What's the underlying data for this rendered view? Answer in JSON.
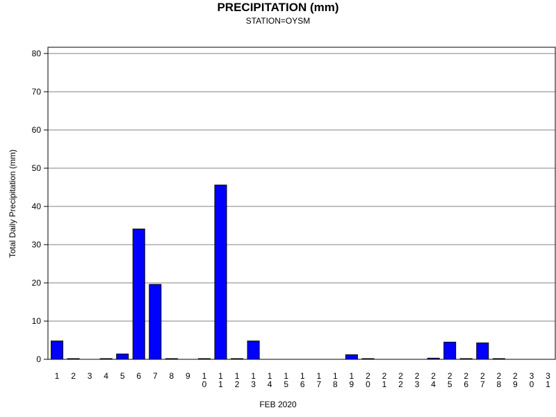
{
  "chart_data": {
    "type": "bar",
    "title": "PRECIPITATION (mm)",
    "subtitle": "STATION=OYSM",
    "xlabel": "FEB 2020",
    "ylabel": "Total Daily Precipitation (mm)",
    "ylim": [
      0,
      80
    ],
    "yticks": [
      0,
      10,
      20,
      30,
      40,
      50,
      60,
      70,
      80
    ],
    "grid": true,
    "bar_color": "#0000ff",
    "categories": [
      "1",
      "2",
      "3",
      "4",
      "5",
      "6",
      "7",
      "8",
      "9",
      "10",
      "11",
      "12",
      "13",
      "14",
      "15",
      "16",
      "17",
      "18",
      "19",
      "20",
      "21",
      "22",
      "23",
      "24",
      "25",
      "26",
      "27",
      "28",
      "29",
      "30",
      "31"
    ],
    "values": [
      4.8,
      0.1,
      null,
      0.1,
      1.4,
      34.1,
      19.6,
      0.1,
      null,
      0.1,
      45.6,
      0.1,
      4.8,
      null,
      null,
      null,
      null,
      null,
      1.2,
      0.1,
      null,
      null,
      null,
      0.3,
      4.5,
      0.1,
      4.3,
      0.1,
      null,
      null,
      null
    ]
  }
}
